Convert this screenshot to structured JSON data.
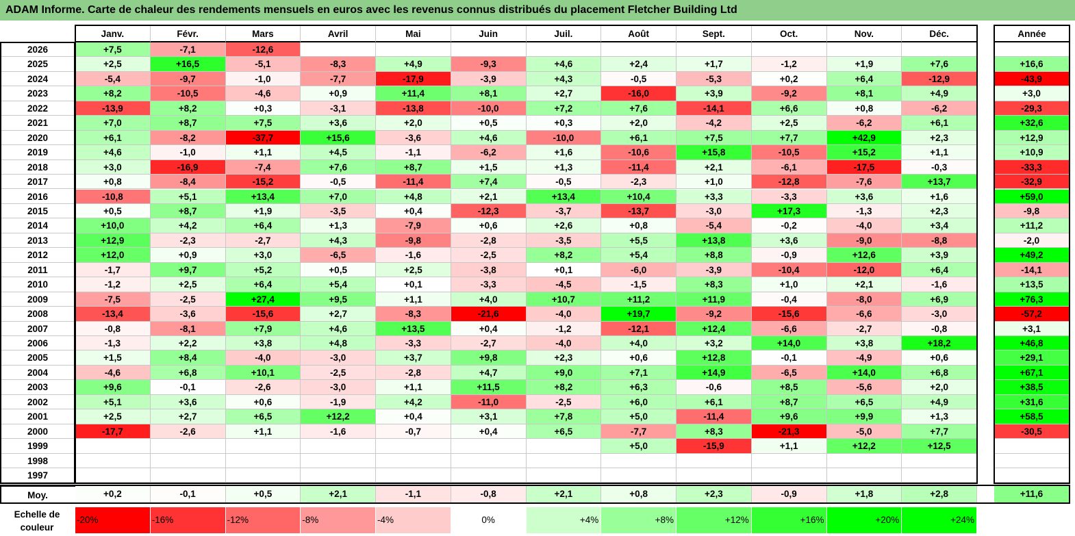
{
  "title": "ADAM Informe. Carte de chaleur des rendements mensuels en euros avec les revenus connus distribués du placement Fletcher Building Ltd",
  "colors": {
    "title_bg": "#8fce8b",
    "neg_max": "#ff0000",
    "pos_max": "#00ff00",
    "neutral": "#ffffff"
  },
  "chart_data": {
    "type": "heatmap",
    "title": "ADAM Informe. Carte de chaleur des rendements mensuels en euros avec les revenus connus distribués du placement Fletcher Building Ltd",
    "months": [
      "Janv.",
      "Févr.",
      "Mars",
      "Avril",
      "Mai",
      "Juin",
      "Juil.",
      "Août",
      "Sept.",
      "Oct.",
      "Nov.",
      "Déc."
    ],
    "year_header": "Année",
    "rows": [
      {
        "year": "2026",
        "months": [
          "+7,5",
          "-7,1",
          "-12,6",
          "",
          "",
          "",
          "",
          "",
          "",
          "",
          "",
          ""
        ],
        "annual": ""
      },
      {
        "year": "2025",
        "months": [
          "+2,5",
          "+16,5",
          "-5,1",
          "-8,3",
          "+4,9",
          "-9,3",
          "+4,6",
          "+2,4",
          "+1,7",
          "-1,2",
          "+1,9",
          "+7,6"
        ],
        "annual": "+16,6"
      },
      {
        "year": "2024",
        "months": [
          "-5,4",
          "-9,7",
          "-1,0",
          "-7,7",
          "-17,9",
          "-3,9",
          "+4,3",
          "-0,5",
          "-5,3",
          "+0,2",
          "+6,4",
          "-12,9"
        ],
        "annual": "-43,9"
      },
      {
        "year": "2023",
        "months": [
          "+8,2",
          "-10,5",
          "-4,6",
          "+0,9",
          "+11,4",
          "+8,1",
          "+2,7",
          "-16,0",
          "+3,9",
          "-9,2",
          "+8,1",
          "+4,9"
        ],
        "annual": "+3,0"
      },
      {
        "year": "2022",
        "months": [
          "-13,9",
          "+8,2",
          "+0,3",
          "-3,1",
          "-13,8",
          "-10,0",
          "+7,2",
          "+7,6",
          "-14,1",
          "+6,6",
          "+0,8",
          "-6,2"
        ],
        "annual": "-29,3"
      },
      {
        "year": "2021",
        "months": [
          "+7,0",
          "+8,7",
          "+7,5",
          "+3,6",
          "+2,0",
          "+0,5",
          "+0,3",
          "+2,0",
          "-4,2",
          "+2,5",
          "-6,2",
          "+6,1"
        ],
        "annual": "+32,6"
      },
      {
        "year": "2020",
        "months": [
          "+6,1",
          "-8,2",
          "-37,7",
          "+15,6",
          "-3,6",
          "+4,6",
          "-10,0",
          "+6,1",
          "+7,5",
          "+7,7",
          "+42,9",
          "+2,3"
        ],
        "annual": "+12,9"
      },
      {
        "year": "2019",
        "months": [
          "+4,6",
          "-1,0",
          "+1,1",
          "+4,5",
          "-1,1",
          "-6,2",
          "+1,6",
          "-10,6",
          "+15,8",
          "-10,5",
          "+15,2",
          "+1,1"
        ],
        "annual": "+10,9"
      },
      {
        "year": "2018",
        "months": [
          "+3,0",
          "-16,9",
          "-7,4",
          "+7,6",
          "+8,7",
          "+1,5",
          "+1,3",
          "-11,4",
          "+2,1",
          "-6,1",
          "-17,5",
          "-0,3"
        ],
        "annual": "-33,3"
      },
      {
        "year": "2017",
        "months": [
          "+0,8",
          "-8,4",
          "-15,2",
          "-0,5",
          "-11,4",
          "+7,4",
          "-0,5",
          "-2,3",
          "+1,0",
          "-12,8",
          "-7,6",
          "+13,7"
        ],
        "annual": "-32,9"
      },
      {
        "year": "2016",
        "months": [
          "-10,8",
          "+5,1",
          "+13,4",
          "+7,0",
          "+4,8",
          "+2,1",
          "+13,4",
          "+10,4",
          "+3,3",
          "-3,3",
          "+3,6",
          "+1,6"
        ],
        "annual": "+59,0"
      },
      {
        "year": "2015",
        "months": [
          "+0,5",
          "+8,7",
          "+1,9",
          "-3,5",
          "+0,4",
          "-12,3",
          "-3,7",
          "-13,7",
          "-3,0",
          "+17,3",
          "-1,3",
          "+2,3"
        ],
        "annual": "-9,8"
      },
      {
        "year": "2014",
        "months": [
          "+10,0",
          "+4,2",
          "+6,4",
          "+1,3",
          "-7,9",
          "+0,6",
          "+2,6",
          "+0,8",
          "-5,4",
          "-0,2",
          "-4,0",
          "+3,4"
        ],
        "annual": "+11,2"
      },
      {
        "year": "2013",
        "months": [
          "+12,9",
          "-2,3",
          "-2,7",
          "+4,3",
          "-9,8",
          "-2,8",
          "-3,5",
          "+5,5",
          "+13,8",
          "+3,6",
          "-9,0",
          "-8,8"
        ],
        "annual": "-2,0"
      },
      {
        "year": "2012",
        "months": [
          "+12,0",
          "+0,9",
          "+3,0",
          "-6,5",
          "-1,6",
          "-2,5",
          "+8,2",
          "+5,4",
          "+8,8",
          "-0,9",
          "+12,6",
          "+3,9"
        ],
        "annual": "+49,2"
      },
      {
        "year": "2011",
        "months": [
          "-1,7",
          "+9,7",
          "+5,2",
          "+0,5",
          "+2,5",
          "-3,8",
          "+0,1",
          "-6,0",
          "-3,9",
          "-10,4",
          "-12,0",
          "+6,4"
        ],
        "annual": "-14,1"
      },
      {
        "year": "2010",
        "months": [
          "-1,2",
          "+2,5",
          "+6,4",
          "+5,4",
          "+0,1",
          "-3,3",
          "-4,5",
          "-1,5",
          "+8,3",
          "+1,0",
          "+2,1",
          "-1,6"
        ],
        "annual": "+13,5"
      },
      {
        "year": "2009",
        "months": [
          "-7,5",
          "-2,5",
          "+27,4",
          "+9,5",
          "+1,1",
          "+4,0",
          "+10,7",
          "+11,2",
          "+11,9",
          "-0,4",
          "-8,0",
          "+6,9"
        ],
        "annual": "+76,3"
      },
      {
        "year": "2008",
        "months": [
          "-13,4",
          "-3,6",
          "-15,6",
          "+2,7",
          "-8,3",
          "-21,6",
          "-4,0",
          "+19,7",
          "-9,2",
          "-15,6",
          "-6,6",
          "-3,0"
        ],
        "annual": "-57,2"
      },
      {
        "year": "2007",
        "months": [
          "-0,8",
          "-8,1",
          "+7,9",
          "+4,6",
          "+13,5",
          "+0,4",
          "-1,2",
          "-12,1",
          "+12,4",
          "-6,6",
          "-2,7",
          "-0,8"
        ],
        "annual": "+3,1"
      },
      {
        "year": "2006",
        "months": [
          "-1,3",
          "+2,2",
          "+3,8",
          "+4,8",
          "-3,3",
          "-2,7",
          "-4,0",
          "+4,0",
          "+3,2",
          "+14,0",
          "+3,8",
          "+18,2"
        ],
        "annual": "+46,8"
      },
      {
        "year": "2005",
        "months": [
          "+1,5",
          "+8,4",
          "-4,0",
          "-3,0",
          "+3,7",
          "+9,8",
          "+2,3",
          "+0,6",
          "+12,8",
          "-0,1",
          "-4,9",
          "+0,6"
        ],
        "annual": "+29,1"
      },
      {
        "year": "2004",
        "months": [
          "-4,6",
          "+6,8",
          "+10,1",
          "-2,5",
          "-2,8",
          "+4,7",
          "+9,0",
          "+7,1",
          "+14,9",
          "-6,5",
          "+14,0",
          "+6,8"
        ],
        "annual": "+67,1"
      },
      {
        "year": "2003",
        "months": [
          "+9,6",
          "-0,1",
          "-2,6",
          "-3,0",
          "+1,1",
          "+11,5",
          "+8,2",
          "+6,3",
          "-0,6",
          "+8,5",
          "-5,6",
          "+2,0"
        ],
        "annual": "+38,5"
      },
      {
        "year": "2002",
        "months": [
          "+5,1",
          "+3,6",
          "+0,6",
          "-1,9",
          "+4,2",
          "-11,0",
          "-2,5",
          "+6,0",
          "+6,1",
          "+8,7",
          "+6,5",
          "+4,9"
        ],
        "annual": "+31,6"
      },
      {
        "year": "2001",
        "months": [
          "+2,5",
          "+2,7",
          "+6,5",
          "+12,2",
          "+0,4",
          "+3,1",
          "+7,8",
          "+5,0",
          "-11,4",
          "+9,6",
          "+9,9",
          "+1,3"
        ],
        "annual": "+58,5"
      },
      {
        "year": "2000",
        "months": [
          "-17,7",
          "-2,6",
          "+1,1",
          "-1,6",
          "-0,7",
          "+0,4",
          "+6,5",
          "-7,7",
          "+8,3",
          "-21,3",
          "-5,0",
          "+7,7"
        ],
        "annual": "-30,5"
      },
      {
        "year": "1999",
        "months": [
          "",
          "",
          "",
          "",
          "",
          "",
          "",
          "+5,0",
          "-15,9",
          "+1,1",
          "+12,2",
          "+12,5"
        ],
        "annual": ""
      },
      {
        "year": "1998",
        "months": [
          "",
          "",
          "",
          "",
          "",
          "",
          "",
          "",
          "",
          "",
          "",
          ""
        ],
        "annual": ""
      },
      {
        "year": "1997",
        "months": [
          "",
          "",
          "",
          "",
          "",
          "",
          "",
          "",
          "",
          "",
          "",
          ""
        ],
        "annual": ""
      }
    ],
    "average": {
      "label": "Moy.",
      "months": [
        "+0,2",
        "-0,1",
        "+0,5",
        "+2,1",
        "-1,1",
        "-0,8",
        "+2,1",
        "+0,8",
        "+2,3",
        "-0,9",
        "+1,8",
        "+2,8"
      ],
      "annual": "+11,6"
    },
    "color_scale": {
      "label_line1": "Echelle de",
      "label_line2": "couleur",
      "steps": [
        "-20%",
        "-16%",
        "-12%",
        "-8%",
        "-4%",
        "0%",
        "+4%",
        "+8%",
        "+12%",
        "+16%",
        "+20%",
        "+24%"
      ]
    }
  }
}
